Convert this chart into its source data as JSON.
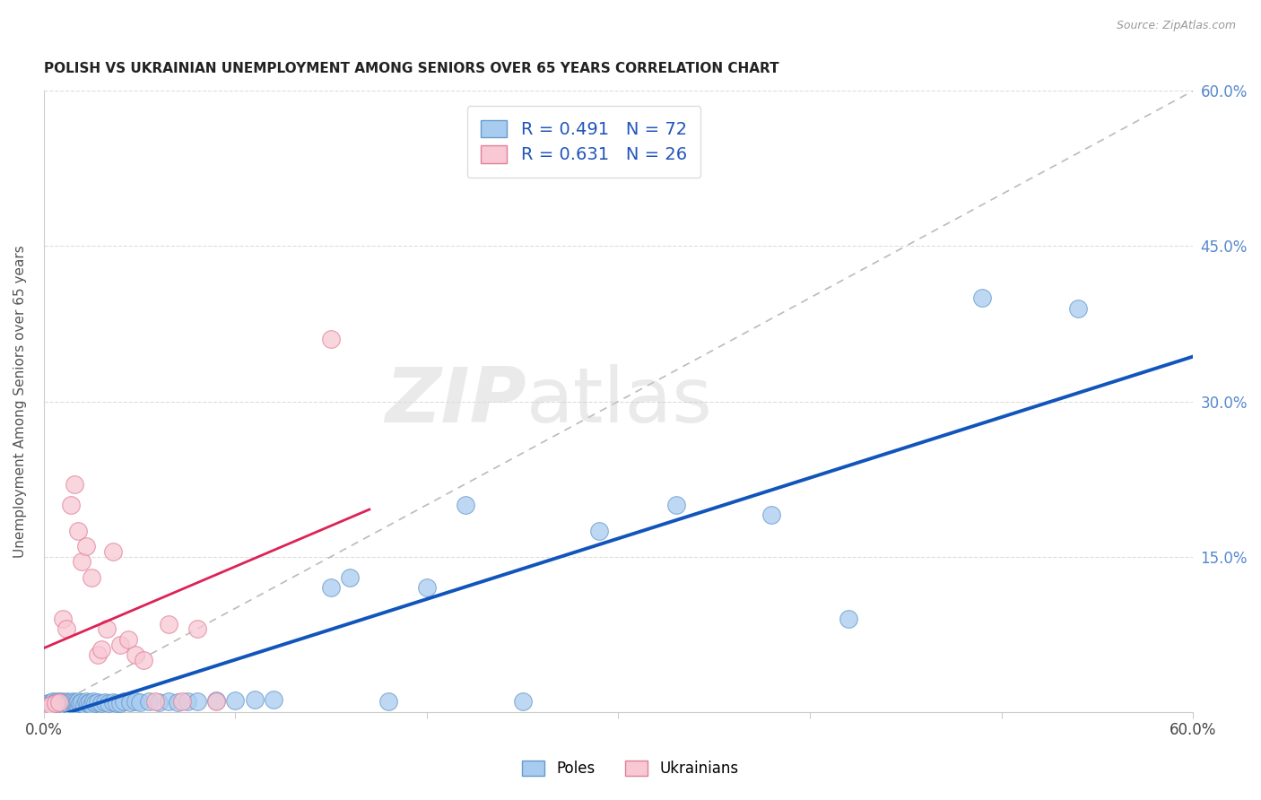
{
  "title": "POLISH VS UKRAINIAN UNEMPLOYMENT AMONG SENIORS OVER 65 YEARS CORRELATION CHART",
  "source": "Source: ZipAtlas.com",
  "ylabel": "Unemployment Among Seniors over 65 years",
  "xlim": [
    0.0,
    0.6
  ],
  "ylim": [
    0.0,
    0.6
  ],
  "poles_color": "#A8CCF0",
  "poles_edge_color": "#6699CC",
  "ukrainians_color": "#F8C8D4",
  "ukrainians_edge_color": "#E08098",
  "poles_line_color": "#1155BB",
  "ukrainians_line_color": "#DD2255",
  "legend_R_poles": "0.491",
  "legend_N_poles": "72",
  "legend_R_ukr": "0.631",
  "legend_N_ukr": "26",
  "watermark_zip": "ZIP",
  "watermark_atlas": "atlas",
  "poles_x": [
    0.002,
    0.003,
    0.004,
    0.004,
    0.005,
    0.005,
    0.006,
    0.006,
    0.007,
    0.007,
    0.008,
    0.008,
    0.009,
    0.009,
    0.01,
    0.01,
    0.011,
    0.011,
    0.012,
    0.012,
    0.013,
    0.013,
    0.014,
    0.015,
    0.015,
    0.016,
    0.016,
    0.017,
    0.018,
    0.018,
    0.019,
    0.02,
    0.021,
    0.022,
    0.023,
    0.024,
    0.025,
    0.026,
    0.027,
    0.028,
    0.03,
    0.032,
    0.034,
    0.036,
    0.038,
    0.04,
    0.042,
    0.045,
    0.048,
    0.05,
    0.055,
    0.06,
    0.065,
    0.07,
    0.075,
    0.08,
    0.09,
    0.1,
    0.11,
    0.12,
    0.15,
    0.16,
    0.18,
    0.2,
    0.22,
    0.25,
    0.29,
    0.33,
    0.38,
    0.42,
    0.49,
    0.54
  ],
  "poles_y": [
    0.008,
    0.007,
    0.009,
    0.006,
    0.008,
    0.01,
    0.007,
    0.009,
    0.006,
    0.01,
    0.007,
    0.009,
    0.008,
    0.01,
    0.006,
    0.009,
    0.008,
    0.007,
    0.01,
    0.008,
    0.007,
    0.009,
    0.006,
    0.008,
    0.01,
    0.007,
    0.009,
    0.008,
    0.006,
    0.01,
    0.008,
    0.009,
    0.007,
    0.01,
    0.008,
    0.009,
    0.007,
    0.01,
    0.008,
    0.009,
    0.008,
    0.009,
    0.008,
    0.009,
    0.008,
    0.008,
    0.01,
    0.009,
    0.01,
    0.009,
    0.01,
    0.009,
    0.01,
    0.009,
    0.01,
    0.01,
    0.011,
    0.011,
    0.012,
    0.012,
    0.12,
    0.13,
    0.01,
    0.12,
    0.2,
    0.01,
    0.175,
    0.2,
    0.19,
    0.09,
    0.4,
    0.39
  ],
  "ukr_x": [
    0.002,
    0.004,
    0.006,
    0.008,
    0.01,
    0.012,
    0.014,
    0.016,
    0.018,
    0.02,
    0.022,
    0.025,
    0.028,
    0.03,
    0.033,
    0.036,
    0.04,
    0.044,
    0.048,
    0.052,
    0.058,
    0.065,
    0.072,
    0.08,
    0.09,
    0.15
  ],
  "ukr_y": [
    0.006,
    0.007,
    0.008,
    0.009,
    0.09,
    0.08,
    0.2,
    0.22,
    0.175,
    0.145,
    0.16,
    0.13,
    0.055,
    0.06,
    0.08,
    0.155,
    0.065,
    0.07,
    0.055,
    0.05,
    0.01,
    0.085,
    0.01,
    0.08,
    0.01,
    0.36
  ]
}
